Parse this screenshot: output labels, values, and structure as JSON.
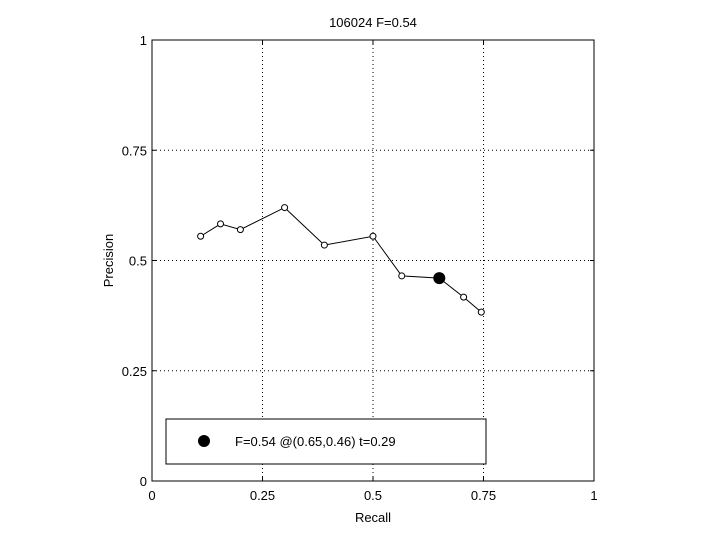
{
  "chart_data": {
    "type": "line",
    "title": "106024 F=0.54",
    "xlabel": "Recall",
    "ylabel": "Precision",
    "xlim": [
      0,
      1
    ],
    "ylim": [
      0,
      1
    ],
    "grid": true,
    "x_ticks": [
      "0",
      "0.25",
      "0.5",
      "0.75",
      "1"
    ],
    "y_ticks": [
      "0",
      "0.25",
      "0.5",
      "0.75",
      "1"
    ],
    "series": [
      {
        "x": [
          0.11,
          0.155,
          0.2,
          0.3,
          0.39,
          0.5,
          0.565,
          0.65,
          0.705,
          0.745
        ],
        "y": [
          0.555,
          0.583,
          0.57,
          0.62,
          0.535,
          0.555,
          0.465,
          0.46,
          0.417,
          0.383
        ]
      }
    ],
    "best_point": {
      "x": 0.65,
      "y": 0.46
    },
    "legend": {
      "placement": "bottom-left",
      "text": "F=0.54 @(0.65,0.46) t=0.29"
    }
  }
}
